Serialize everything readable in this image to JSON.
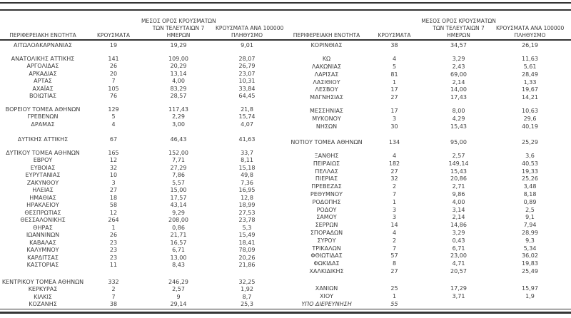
{
  "document": {
    "kind": "daily-cases-by-regional-unit-table",
    "language": "el"
  },
  "colors": {
    "background": "#ffffff",
    "text": "#3d3d3d",
    "rule": "#343434"
  },
  "columns": {
    "region": "ΠΕΡΙΦΕΡΕΙΑΚΗ ΕΝΟΤΗΤΑ",
    "cases": "ΚΡΟΥΣΜΑΤΑ",
    "avg7_lines": [
      "ΜΕΣΟΣ ΟΡΟΣ ΚΡΟΥΣΜΑΤΩΝ",
      "ΤΩΝ ΤΕΛΕΥΤΑΙΩΝ 7",
      "ΗΜΕΡΩΝ"
    ],
    "per100k_lines": [
      "ΚΡΟΥΣΜΑΤΑ ΑΝΑ 100000",
      "ΠΛΗΘΥΣΜΟ"
    ]
  },
  "chart_data": {
    "type": "table",
    "column_headers": [
      "ΠΕΡΙΦΕΡΕΙΑΚΗ ΕΝΟΤΗΤΑ",
      "ΚΡΟΥΣΜΑΤΑ",
      "ΜΕΣΟΣ ΟΡΟΣ ΚΡΟΥΣΜΑΤΩΝ ΤΩΝ ΤΕΛΕΥΤΑΙΩΝ 7 ΗΜΕΡΩΝ",
      "ΚΡΟΥΣΜΑΤΑ ΑΝΑ 100000 ΠΛΗΘΥΣΜΟ"
    ],
    "left_groups": [
      [
        [
          "ΑΙΤΩΛΟΑΚΑΡΝΑΝΙΑΣ",
          "19",
          "19,29",
          "9,01"
        ]
      ],
      [
        [
          "ΑΝΑΤΟΛΙΚΗΣ ΑΤΤΙΚΗΣ",
          "141",
          "109,00",
          "28,07"
        ],
        [
          "ΑΡΓΟΛΙΔΑΣ",
          "26",
          "20,29",
          "26,79"
        ],
        [
          "ΑΡΚΑΔΙΑΣ",
          "20",
          "13,14",
          "23,07"
        ],
        [
          "ΑΡΤΑΣ",
          "7",
          "4,00",
          "10,31"
        ],
        [
          "ΑΧΑΪΑΣ",
          "105",
          "83,29",
          "33,84"
        ],
        [
          "ΒΟΙΩΤΙΑΣ",
          "76",
          "28,57",
          "64,45"
        ]
      ],
      [
        [
          "ΒΟΡΕΙΟΥ ΤΟΜΕΑ ΑΘΗΝΩΝ",
          "129",
          "117,43",
          "21,8"
        ],
        [
          "ΓΡΕΒΕΝΩΝ",
          "5",
          "2,29",
          "15,74"
        ],
        [
          "ΔΡΑΜΑΣ",
          "4",
          "3,00",
          "4,07"
        ]
      ],
      [
        [
          "ΔΥΤΙΚΗΣ ΑΤΤΙΚΗΣ",
          "67",
          "46,43",
          "41,63"
        ]
      ],
      [
        [
          "ΔΥΤΙΚΟΥ ΤΟΜΕΑ ΑΘΗΝΩΝ",
          "165",
          "152,00",
          "33,7"
        ],
        [
          "ΕΒΡΟΥ",
          "12",
          "7,71",
          "8,11"
        ],
        [
          "ΕΥΒΟΙΑΣ",
          "32",
          "27,29",
          "15,18"
        ],
        [
          "ΕΥΡΥΤΑΝΙΑΣ",
          "10",
          "7,86",
          "49,8"
        ],
        [
          "ΖΑΚΥΝΘΟΥ",
          "3",
          "5,57",
          "7,36"
        ],
        [
          "ΗΛΕΙΑΣ",
          "27",
          "15,00",
          "16,95"
        ],
        [
          "ΗΜΑΘΙΑΣ",
          "18",
          "17,57",
          "12,8"
        ],
        [
          "ΗΡΑΚΛΕΙΟΥ",
          "58",
          "43,14",
          "18,99"
        ],
        [
          "ΘΕΣΠΡΩΤΙΑΣ",
          "12",
          "9,29",
          "27,53"
        ],
        [
          "ΘΕΣΣΑΛΟΝΙΚΗΣ",
          "264",
          "208,00",
          "23,78"
        ],
        [
          "ΘΗΡΑΣ",
          "1",
          "0,86",
          "5,3"
        ],
        [
          "ΙΩΑΝΝΙΝΩΝ",
          "26",
          "21,71",
          "15,49"
        ],
        [
          "ΚΑΒΑΛΑΣ",
          "23",
          "16,57",
          "18,41"
        ],
        [
          "ΚΑΛΥΜΝΟΥ",
          "23",
          "6,71",
          "78,09"
        ],
        [
          "ΚΑΡΔΙΤΣΑΣ",
          "23",
          "13,00",
          "20,26"
        ],
        [
          "ΚΑΣΤΟΡΙΑΣ",
          "11",
          "8,43",
          "21,86"
        ]
      ],
      [
        [
          "ΚΕΝΤΡΙΚΟΥ ΤΟΜΕΑ ΑΘΗΝΩΝ",
          "332",
          "246,29",
          "32,25"
        ],
        [
          "ΚΕΡΚΥΡΑΣ",
          "2",
          "2,57",
          "1,92"
        ],
        [
          "ΚΙΛΚΙΣ",
          "7",
          "9",
          "8,7"
        ],
        [
          "ΚΟΖΑΝΗΣ",
          "38",
          "29,14",
          "25,3"
        ]
      ]
    ],
    "right_groups": [
      [
        [
          "ΚΟΡΙΝΘΙΑΣ",
          "38",
          "34,57",
          "26,19"
        ]
      ],
      [
        [
          "ΚΩ",
          "4",
          "3,29",
          "11,63"
        ],
        [
          "ΛΑΚΩΝΙΑΣ",
          "5",
          "2,43",
          "5,61"
        ],
        [
          "ΛΑΡΙΣΑΣ",
          "81",
          "69,00",
          "28,49"
        ],
        [
          "ΛΑΣΙΘΙΟΥ",
          "1",
          "2,14",
          "1,33"
        ],
        [
          "ΛΕΣΒΟΥ",
          "17",
          "14,00",
          "19,67"
        ],
        [
          "ΜΑΓΝΗΣΙΑΣ",
          "27",
          "17,43",
          "14,21"
        ]
      ],
      [
        [
          "ΜΕΣΣΗΝΙΑΣ",
          "17",
          "8,00",
          "10,63"
        ],
        [
          "ΜΥΚΟΝΟΥ",
          "3",
          "4,29",
          "29,6"
        ],
        [
          "ΝΗΣΩΝ",
          "30",
          "15,43",
          "40,19"
        ]
      ],
      [
        [
          "ΝΟΤΙΟΥ ΤΟΜΕΑ ΑΘΗΝΩΝ",
          "134",
          "95,00",
          "25,29"
        ]
      ],
      [
        [
          "ΞΑΝΘΗΣ",
          "4",
          "2,57",
          "3,6"
        ],
        [
          "ΠΕΙΡΑΙΩΣ",
          "182",
          "149,14",
          "40,53"
        ],
        [
          "ΠΕΛΛΑΣ",
          "27",
          "15,43",
          "19,33"
        ],
        [
          "ΠΙΕΡΙΑΣ",
          "32",
          "20,86",
          "25,26"
        ],
        [
          "ΠΡΕΒΕΖΑΣ",
          "2",
          "2,71",
          "3,48"
        ],
        [
          "ΡΕΘΥΜΝΟΥ",
          "7",
          "9,86",
          "8,18"
        ],
        [
          "ΡΟΔΟΠΗΣ",
          "1",
          "4,00",
          "0,89"
        ],
        [
          "ΡΟΔΟΥ",
          "3",
          "3,14",
          "2,5"
        ],
        [
          "ΣΑΜΟΥ",
          "3",
          "2,14",
          "9,1"
        ],
        [
          "ΣΕΡΡΩΝ",
          "14",
          "14,86",
          "7,94"
        ],
        [
          "ΣΠΟΡΑΔΩΝ",
          "4",
          "3,29",
          "28,99"
        ],
        [
          "ΣΥΡΟΥ",
          "2",
          "0,43",
          "9,3"
        ],
        [
          "ΤΡΙΚΑΛΩΝ",
          "7",
          "6,71",
          "5,34"
        ],
        [
          "ΦΘΙΩΤΙΔΑΣ",
          "57",
          "23,00",
          "36,02"
        ],
        [
          "ΦΩΚΙΔΑΣ",
          "8",
          "4,71",
          "19,83"
        ],
        [
          "ΧΑΛΚΙΔΙΚΗΣ",
          "27",
          "20,57",
          "25,49"
        ]
      ],
      [
        [
          "ΧΑΝΙΩΝ",
          "25",
          "17,29",
          "15,97"
        ],
        [
          "ΧΙΟΥ",
          "1",
          "3,71",
          "1,9"
        ],
        [
          "ΥΠΟ ΔΙΕΡΕΥΝΗΣΗ",
          "55",
          "",
          ""
        ]
      ]
    ],
    "italic_rows": [
      "ΥΠΟ ΔΙΕΡΕΥΝΗΣΗ"
    ]
  }
}
